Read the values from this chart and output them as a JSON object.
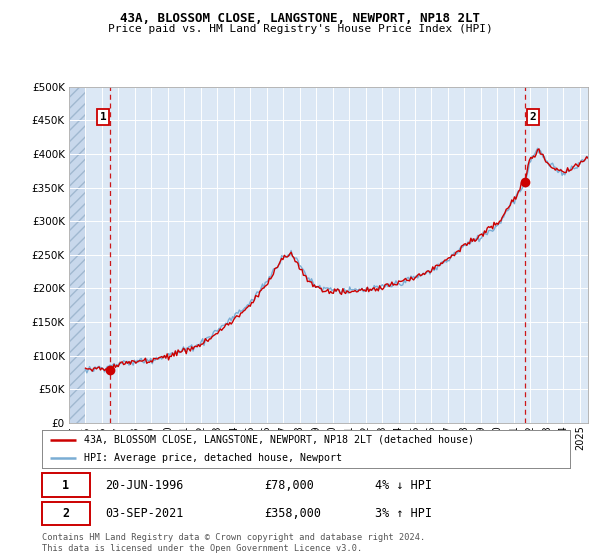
{
  "title": "43A, BLOSSOM CLOSE, LANGSTONE, NEWPORT, NP18 2LT",
  "subtitle": "Price paid vs. HM Land Registry's House Price Index (HPI)",
  "legend_label_red": "43A, BLOSSOM CLOSE, LANGSTONE, NEWPORT, NP18 2LT (detached house)",
  "legend_label_blue": "HPI: Average price, detached house, Newport",
  "annotation1_date": "20-JUN-1996",
  "annotation1_price": "£78,000",
  "annotation1_hpi": "4% ↓ HPI",
  "annotation2_date": "03-SEP-2021",
  "annotation2_price": "£358,000",
  "annotation2_hpi": "3% ↑ HPI",
  "footer": "Contains HM Land Registry data © Crown copyright and database right 2024.\nThis data is licensed under the Open Government Licence v3.0.",
  "xmin": 1994.0,
  "xmax": 2025.5,
  "ymin": 0,
  "ymax": 500000,
  "yticks": [
    0,
    50000,
    100000,
    150000,
    200000,
    250000,
    300000,
    350000,
    400000,
    450000,
    500000
  ],
  "ytick_labels": [
    "£0",
    "£50K",
    "£100K",
    "£150K",
    "£200K",
    "£250K",
    "£300K",
    "£350K",
    "£400K",
    "£450K",
    "£500K"
  ],
  "bg_color": "#ffffff",
  "plot_bg_color": "#dce8f5",
  "grid_color": "#ffffff",
  "red_line_color": "#cc0000",
  "blue_line_color": "#7aadd4",
  "annotation_line_color": "#cc0000",
  "marker_color": "#cc0000",
  "transaction1_x": 1996.47,
  "transaction1_y": 78000,
  "transaction2_x": 2021.67,
  "transaction2_y": 358000,
  "hatch_end": 1995.0
}
